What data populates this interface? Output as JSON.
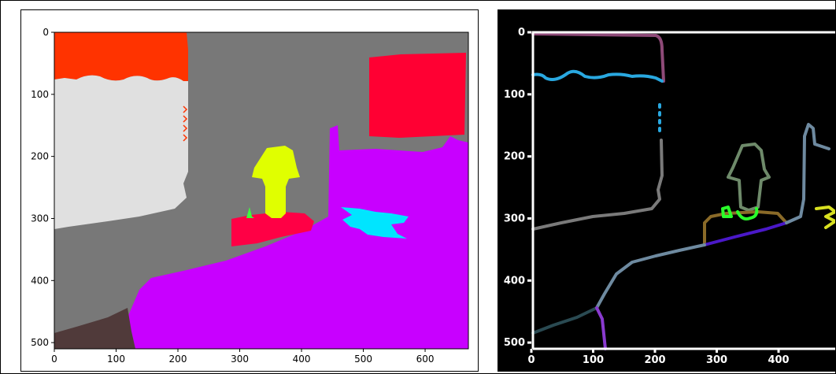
{
  "chart_data": [
    {
      "type": "heatmap",
      "description_kind": "segmentation-map",
      "xlim": [
        0,
        670
      ],
      "ylim": [
        510,
        0
      ],
      "xticks": [
        "0",
        "100",
        "200",
        "300",
        "400",
        "500",
        "600"
      ],
      "yticks": [
        "0",
        "100",
        "200",
        "300",
        "400",
        "500"
      ],
      "colors": {
        "wall": "#787878",
        "ceiling_red": "#ff3300",
        "curtain": "#e0e0e0",
        "window_red": "#ff0033",
        "bed": "#c800ff",
        "lamp": "#e0ff00",
        "nightstand": "#ff0045",
        "pillow_cyan": "#00e5ff",
        "floor": "#503a3a",
        "plant": "#3cff3c"
      }
    },
    {
      "type": "heatmap",
      "description_kind": "boundary-map",
      "xlim": [
        0,
        670
      ],
      "ylim": [
        510,
        0
      ],
      "xticks": [
        "0",
        "100",
        "200",
        "300",
        "400"
      ],
      "yticks": [
        "0",
        "100",
        "200",
        "300",
        "400",
        "500"
      ],
      "background": "#000000",
      "axis_color": "#ffffff",
      "colors": {
        "ceiling_edge": "#8e4a78",
        "curtain_top": "#29a8e0",
        "curtain_side": "#7a7a7a",
        "lamp_edge": "#6e8a6a",
        "nightstand_edge": "#8a6a28",
        "lamp_base": "#2aff2a",
        "bed_edge": "#4a18c8",
        "floor_edge": "#6e8aa0",
        "floor_left": "#2a4a52",
        "floor_right": "#8a3ad0",
        "pillow_edge": "#d8e020",
        "wall_right": "#6e8aa0"
      }
    }
  ]
}
